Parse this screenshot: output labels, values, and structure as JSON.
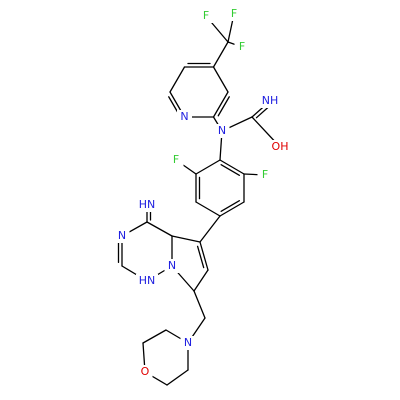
{
  "molecule": {
    "atoms": [
      {
        "label": "F"
      },
      {
        "label": "F"
      },
      {
        "label": "F"
      },
      {
        "label": "N"
      },
      {
        "label": "N"
      },
      {
        "label": "NH"
      },
      {
        "label": "OH"
      },
      {
        "label": "F"
      },
      {
        "label": "F"
      },
      {
        "label": "HN"
      },
      {
        "label": "N"
      },
      {
        "label": "HN"
      },
      {
        "label": "N"
      },
      {
        "label": "N"
      },
      {
        "label": "O"
      }
    ]
  }
}
